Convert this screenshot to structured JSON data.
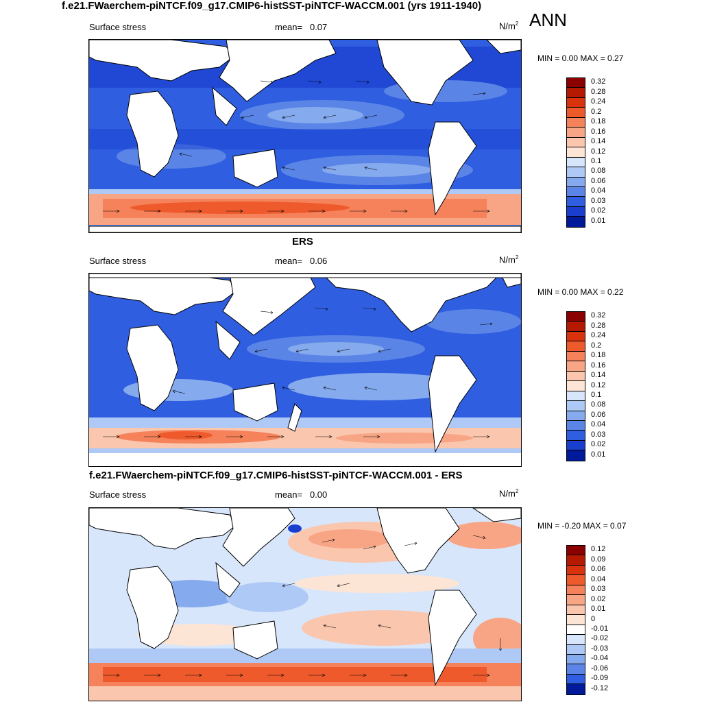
{
  "title": "f.e21.FWaerchem-piNTCF.f09_g17.CMIP6-histSST-piNTCF-WACCM.001 (yrs 1911-1940)",
  "season": "ANN",
  "panels": [
    {
      "heading": "",
      "variable": "Surface stress",
      "mean_label": "mean=",
      "mean": "0.07",
      "unit": "N/m",
      "unit_exp": "2",
      "minmax": "MIN =   0.00 MAX =   0.27",
      "colorbar": [
        "0.32",
        "0.28",
        "0.24",
        "0.2",
        "0.18",
        "0.16",
        "0.14",
        "0.12",
        "0.1",
        "0.08",
        "0.06",
        "0.04",
        "0.03",
        "0.02",
        "0.01"
      ],
      "colors": [
        "#8b0000",
        "#b51a00",
        "#d8330c",
        "#ee5a2c",
        "#f5825a",
        "#f8a585",
        "#fac6ae",
        "#fde5d5",
        "#d7e6fb",
        "#aec9f5",
        "#86aaee",
        "#5a85e6",
        "#2f5ee0",
        "#1a3fcf",
        "#001a99"
      ]
    },
    {
      "heading": "ERS",
      "variable": "Surface stress",
      "mean_label": "mean=",
      "mean": "0.06",
      "unit": "N/m",
      "unit_exp": "2",
      "minmax": "MIN =   0.00 MAX =   0.22",
      "colorbar": [
        "0.32",
        "0.28",
        "0.24",
        "0.2",
        "0.18",
        "0.16",
        "0.14",
        "0.12",
        "0.1",
        "0.08",
        "0.06",
        "0.04",
        "0.03",
        "0.02",
        "0.01"
      ],
      "colors": [
        "#8b0000",
        "#b51a00",
        "#d8330c",
        "#ee5a2c",
        "#f5825a",
        "#f8a585",
        "#fac6ae",
        "#fde5d5",
        "#d7e6fb",
        "#aec9f5",
        "#86aaee",
        "#5a85e6",
        "#2f5ee0",
        "#1a3fcf",
        "#001a99"
      ]
    },
    {
      "heading": "f.e21.FWaerchem-piNTCF.f09_g17.CMIP6-histSST-piNTCF-WACCM.001 - ERS",
      "variable": "Surface stress",
      "mean_label": "mean=",
      "mean": "0.00",
      "unit": "N/m",
      "unit_exp": "2",
      "minmax": "MIN =  -0.20 MAX =   0.07",
      "colorbar": [
        "0.12",
        "0.09",
        "0.06",
        "0.04",
        "0.03",
        "0.02",
        "0.01",
        "0",
        "-0.01",
        "-0.02",
        "-0.03",
        "-0.04",
        "-0.06",
        "-0.09",
        "-0.12"
      ],
      "colors": [
        "#8b0000",
        "#b51a00",
        "#d8330c",
        "#ee5a2c",
        "#f5825a",
        "#f8a585",
        "#fac6ae",
        "#fde5d5",
        "#ffffff",
        "#d7e6fb",
        "#aec9f5",
        "#86aaee",
        "#5a85e6",
        "#2f5ee0",
        "#001a99"
      ]
    }
  ]
}
